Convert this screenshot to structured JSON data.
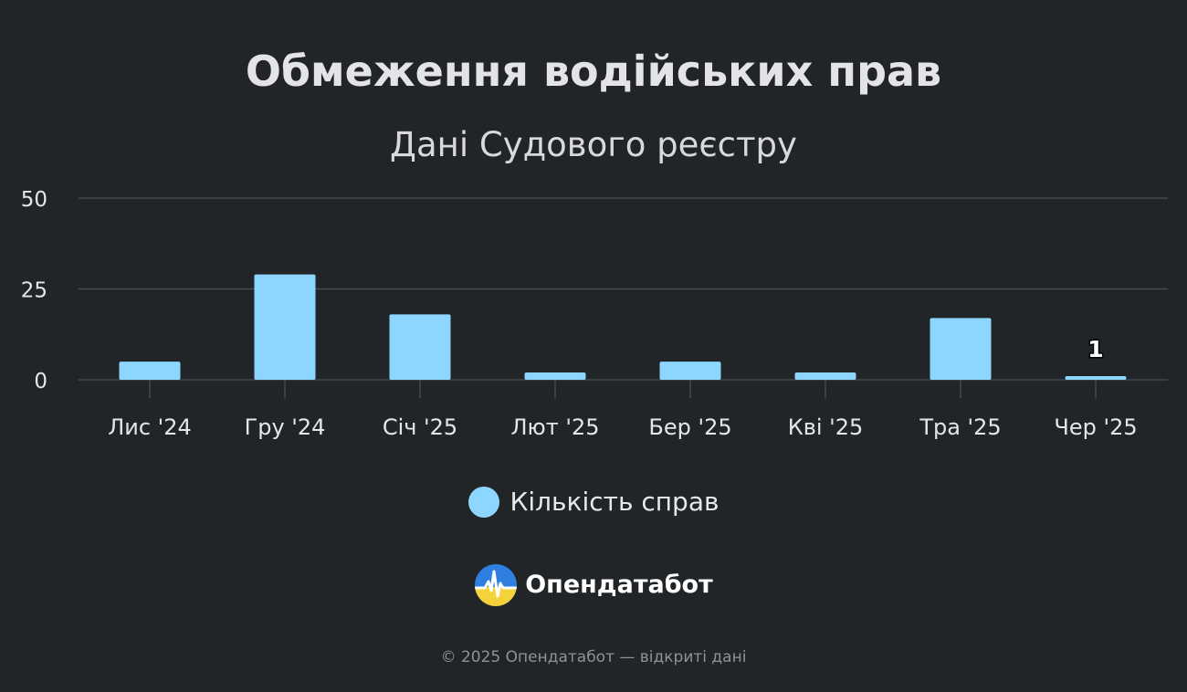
{
  "colors": {
    "background": "#212528",
    "bar": "#8dd6ff",
    "grid": "#4a4f54",
    "text": "#e6e6e8"
  },
  "chart_data": {
    "type": "bar",
    "title": "Обмеження водійських прав",
    "subtitle": "Дані Судового реєстру",
    "categories": [
      "Лис '24",
      "Гру '24",
      "Січ '25",
      "Лют '25",
      "Бер '25",
      "Кві '25",
      "Тра '25",
      "Чер '25"
    ],
    "series": [
      {
        "name": "Кількість справ",
        "values": [
          5,
          29,
          18,
          2,
          5,
          2,
          17,
          1
        ]
      }
    ],
    "y_ticks": [
      0,
      25,
      50
    ],
    "ylim": [
      0,
      50
    ],
    "data_labels": [
      {
        "category": "Чер '25",
        "text": "1"
      }
    ],
    "grid": true,
    "legend_position": "bottom"
  },
  "legend": {
    "label": "Кількість справ",
    "marker": "circle"
  },
  "brand": {
    "name": "Опендатабот",
    "logo_icon": "opendatabot-logo-icon"
  },
  "footer": {
    "text": "© 2025 Опендатабот — відкриті дані"
  }
}
